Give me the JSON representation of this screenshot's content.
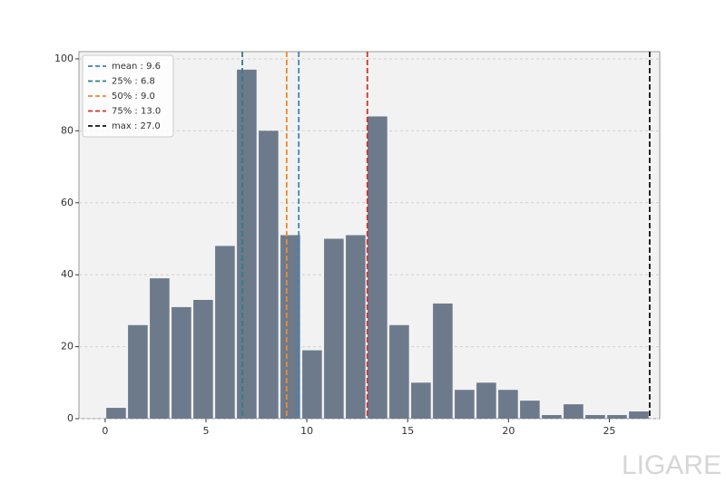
{
  "chart_data": {
    "type": "histogram",
    "bins": [
      0,
      1.08,
      2.16,
      3.24,
      4.32,
      5.4,
      6.48,
      7.56,
      8.64,
      9.72,
      10.8,
      11.88,
      12.96,
      14.04,
      15.12,
      16.2,
      17.28,
      18.36,
      19.44,
      20.52,
      21.6,
      22.68,
      23.76,
      24.84,
      25.92,
      27
    ],
    "values": [
      3,
      26,
      39,
      31,
      33,
      48,
      97,
      80,
      51,
      19,
      50,
      51,
      84,
      26,
      10,
      32,
      8,
      10,
      8,
      5,
      1,
      4,
      1,
      1,
      2
    ],
    "color": "#6c7a8c",
    "xlim": [
      -1.3,
      27.5
    ],
    "xticks": [
      0,
      5,
      10,
      15,
      20,
      25
    ],
    "ylim": [
      0,
      102
    ],
    "yticks": [
      0,
      20,
      40,
      60,
      80,
      100
    ],
    "grid": true,
    "legend": "upper left",
    "lines": [
      {
        "label": "mean : 9.6",
        "value": 9.6,
        "color": "#3b82c4"
      },
      {
        "label": "25% : 6.8",
        "value": 6.8,
        "color": "#2a7f8a"
      },
      {
        "label": "50% : 9.0",
        "value": 9.0,
        "color": "#f0892a"
      },
      {
        "label": "75% : 13.0",
        "value": 13.0,
        "color": "#d8302a"
      },
      {
        "label": "max : 27.0",
        "value": 27.0,
        "color": "#111111"
      }
    ]
  },
  "watermark": "LIGARE"
}
